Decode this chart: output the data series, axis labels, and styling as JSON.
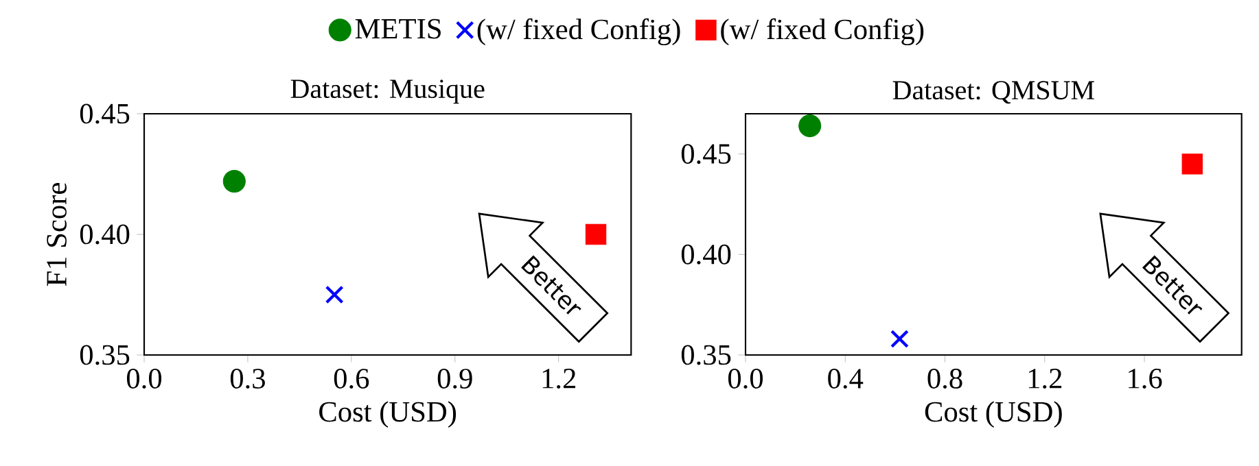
{
  "chart_data": [
    {
      "type": "scatter",
      "title": "Dataset: Musique",
      "xlabel": "Cost (USD)",
      "ylabel": "F1 Score",
      "legend": "top",
      "xlim": [
        0,
        1.41
      ],
      "ylim": [
        0.35,
        0.45
      ],
      "xticks": [
        {
          "value": 0,
          "label": "0.0"
        },
        {
          "value": 0.3,
          "label": "0.3"
        },
        {
          "value": 0.6,
          "label": "0.6"
        },
        {
          "value": 0.9,
          "label": "0.9"
        },
        {
          "value": 1.2,
          "label": "1.2"
        }
      ],
      "yticks": [
        {
          "value": 0.35,
          "label": "0.35"
        },
        {
          "value": 0.4,
          "label": "0.40"
        },
        {
          "value": 0.45,
          "label": "0.45"
        }
      ],
      "annotations": [
        "Better"
      ],
      "series": [
        {
          "name": "METIS",
          "color": "#008000",
          "marker": "circle",
          "x": [
            0.261
          ],
          "values": [
            0.422
          ]
        },
        {
          "name": "(w/ fixed Config)",
          "color": "#0000ff",
          "marker": "cross",
          "x": [
            0.551
          ],
          "values": [
            0.375
          ]
        },
        {
          "name": "(w/ fixed Config)",
          "color": "#ff0000",
          "marker": "square",
          "x": [
            1.308
          ],
          "values": [
            0.4
          ]
        }
      ]
    },
    {
      "type": "scatter",
      "title": "Dataset: QMSUM",
      "xlabel": "Cost (USD)",
      "xlim": [
        0,
        1.99
      ],
      "ylim": [
        0.35,
        0.47
      ],
      "xticks": [
        {
          "value": 0,
          "label": "0.0"
        },
        {
          "value": 0.4,
          "label": "0.4"
        },
        {
          "value": 0.8,
          "label": "0.8"
        },
        {
          "value": 1.2,
          "label": "1.2"
        },
        {
          "value": 1.6,
          "label": "1.6"
        }
      ],
      "yticks": [
        {
          "value": 0.35,
          "label": "0.35"
        },
        {
          "value": 0.4,
          "label": "0.40"
        },
        {
          "value": 0.45,
          "label": "0.45"
        }
      ],
      "annotations": [
        "Better"
      ],
      "series": [
        {
          "color": "#008000",
          "marker": "circle",
          "x": [
            0.258
          ],
          "values": [
            0.464
          ]
        },
        {
          "color": "#0000ff",
          "marker": "cross",
          "x": [
            0.618
          ],
          "values": [
            0.358
          ]
        },
        {
          "color": "#ff0000",
          "marker": "square",
          "x": [
            1.792
          ],
          "values": [
            0.445
          ]
        }
      ]
    }
  ]
}
